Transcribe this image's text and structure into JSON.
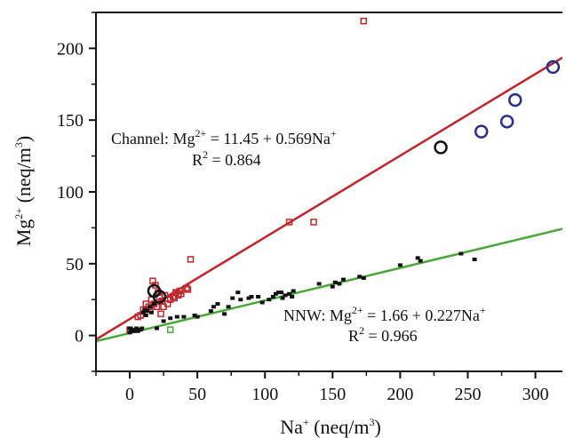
{
  "chart_data": {
    "type": "scatter",
    "xlabel": {
      "base": "Na",
      "sup": "+",
      "unit_pre": " (neq/m",
      "unit_sup": "3",
      "unit_post": ")"
    },
    "ylabel": {
      "base": "Mg",
      "sup": "2+",
      "unit_pre": " (neq/m",
      "unit_sup": "3",
      "unit_post": ")"
    },
    "xlim": [
      -25,
      320
    ],
    "ylim": [
      -25,
      225
    ],
    "x_ticks": [
      0,
      50,
      100,
      150,
      200,
      250,
      300
    ],
    "y_ticks": [
      0,
      50,
      100,
      150,
      200
    ],
    "colors": {
      "channel": "#c0272d",
      "nnw": "#4aa83a",
      "black": "#111111",
      "blue": "#2b2f8f"
    },
    "annotations": {
      "channel": {
        "eq_pre": "Channel:  Mg",
        "eq_sup": "2+",
        "eq_post": " = 11.45 + 0.569Na",
        "eq_sup2": "+",
        "r2_pre": "R",
        "r2_sup": "2",
        "r2_post": " = 0.864"
      },
      "nnw": {
        "eq_pre": "NNW:  Mg",
        "eq_sup": "2+",
        "eq_post": " = 1.66 + 0.227Na",
        "eq_sup2": "+",
        "r2_pre": "R",
        "r2_sup": "2",
        "r2_post": " = 0.966"
      }
    },
    "fit_lines": [
      {
        "intercept": 11.45,
        "slope": 0.569,
        "color_key": "channel"
      },
      {
        "intercept": 1.66,
        "slope": 0.227,
        "color_key": "nnw"
      }
    ],
    "series": [
      {
        "marker": "open-square",
        "color_key": "channel",
        "points": [
          [
            0,
            4
          ],
          [
            6,
            13
          ],
          [
            8,
            14
          ],
          [
            10,
            18
          ],
          [
            12,
            22
          ],
          [
            14,
            20
          ],
          [
            15,
            18
          ],
          [
            16,
            25
          ],
          [
            17,
            38
          ],
          [
            18,
            22
          ],
          [
            19,
            35
          ],
          [
            20,
            20
          ],
          [
            21,
            30
          ],
          [
            22,
            27
          ],
          [
            23,
            15
          ],
          [
            24,
            24
          ],
          [
            25,
            20
          ],
          [
            26,
            28
          ],
          [
            28,
            22
          ],
          [
            30,
            25
          ],
          [
            32,
            27
          ],
          [
            33,
            26
          ],
          [
            34,
            30
          ],
          [
            36,
            28
          ],
          [
            37,
            31
          ],
          [
            38,
            29
          ],
          [
            42,
            33
          ],
          [
            43,
            32
          ],
          [
            45,
            53
          ],
          [
            118,
            79
          ],
          [
            136,
            79
          ],
          [
            173,
            219
          ]
        ]
      },
      {
        "marker": "filled-square",
        "color_key": "black",
        "points": [
          [
            0,
            2
          ],
          [
            0,
            5
          ],
          [
            1,
            3
          ],
          [
            2,
            4
          ],
          [
            3,
            3
          ],
          [
            4,
            4
          ],
          [
            5,
            5
          ],
          [
            6,
            3
          ],
          [
            7,
            4
          ],
          [
            8,
            4
          ],
          [
            9,
            5
          ],
          [
            10,
            16
          ],
          [
            11,
            18
          ],
          [
            12,
            14
          ],
          [
            13,
            17
          ],
          [
            15,
            20
          ],
          [
            16,
            16
          ],
          [
            18,
            22
          ],
          [
            20,
            5
          ],
          [
            25,
            10
          ],
          [
            30,
            12
          ],
          [
            35,
            13
          ],
          [
            40,
            13
          ],
          [
            48,
            14
          ],
          [
            50,
            13
          ],
          [
            60,
            17
          ],
          [
            62,
            20
          ],
          [
            65,
            22
          ],
          [
            70,
            15
          ],
          [
            73,
            20
          ],
          [
            76,
            26
          ],
          [
            80,
            30
          ],
          [
            82,
            25
          ],
          [
            88,
            26
          ],
          [
            90,
            27
          ],
          [
            95,
            27
          ],
          [
            98,
            23
          ],
          [
            103,
            25
          ],
          [
            106,
            27
          ],
          [
            108,
            29
          ],
          [
            110,
            30
          ],
          [
            112,
            30
          ],
          [
            113,
            26
          ],
          [
            115,
            28
          ],
          [
            118,
            29
          ],
          [
            120,
            27
          ],
          [
            121,
            31
          ],
          [
            140,
            36
          ],
          [
            150,
            34
          ],
          [
            152,
            37
          ],
          [
            155,
            36
          ],
          [
            158,
            39
          ],
          [
            170,
            41
          ],
          [
            173,
            40
          ],
          [
            200,
            49
          ],
          [
            213,
            54
          ],
          [
            215,
            52
          ],
          [
            245,
            57
          ],
          [
            255,
            53
          ]
        ]
      },
      {
        "marker": "open-square",
        "color_key": "nnw",
        "points": [
          [
            30,
            4
          ]
        ]
      },
      {
        "marker": "open-circle",
        "color_key": "black",
        "points": [
          [
            18,
            31
          ],
          [
            22,
            27
          ],
          [
            230,
            131
          ]
        ]
      },
      {
        "marker": "open-circle",
        "color_key": "blue",
        "points": [
          [
            260,
            142
          ],
          [
            279,
            149
          ],
          [
            285,
            164
          ],
          [
            313,
            187
          ]
        ]
      }
    ]
  }
}
